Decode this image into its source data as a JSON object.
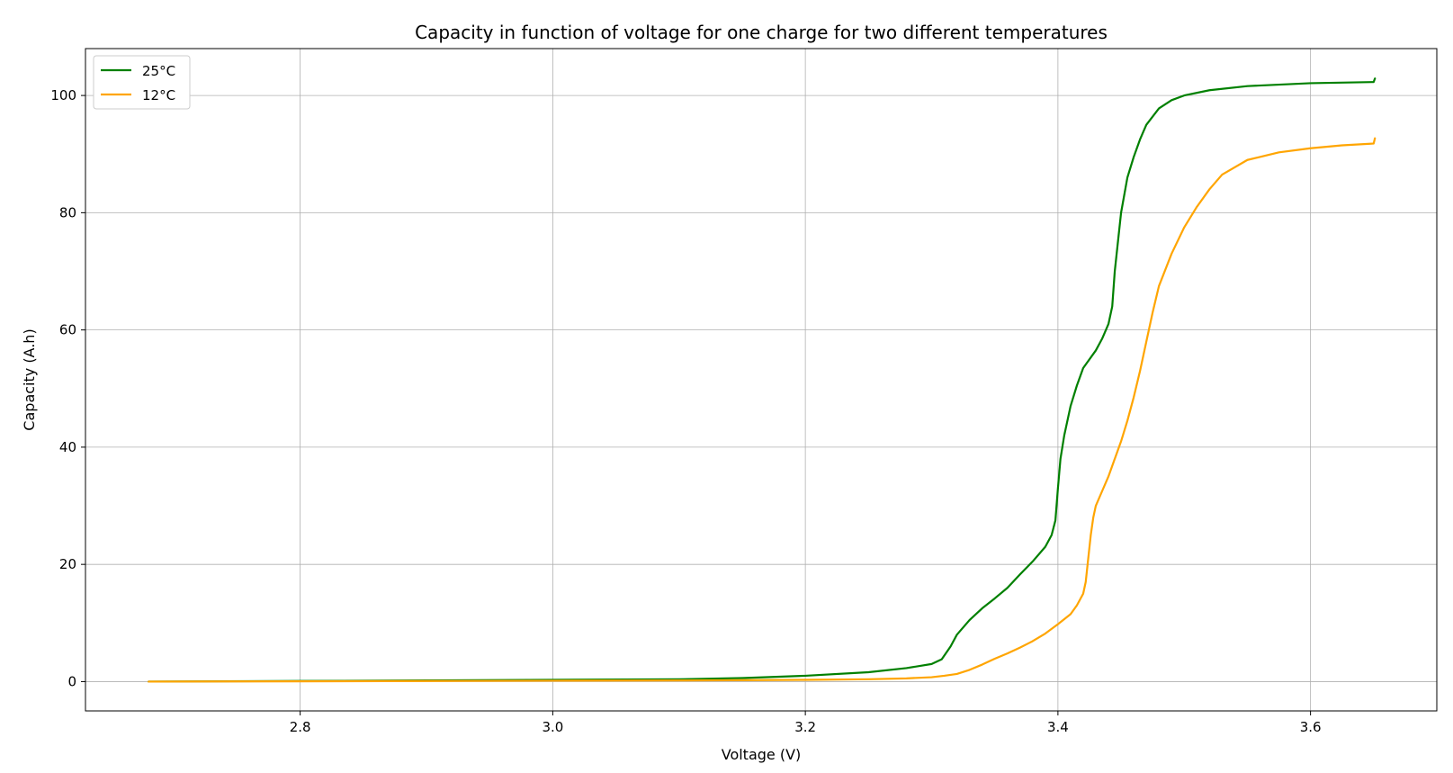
{
  "chart_data": {
    "type": "line",
    "title": "Capacity in function of voltage for one charge for two different temperatures",
    "xlabel": "Voltage (V)",
    "ylabel": "Capacity (A.h)",
    "xlim": [
      2.63,
      3.7
    ],
    "ylim": [
      -5,
      108
    ],
    "x_ticks": [
      2.8,
      3.0,
      3.2,
      3.4,
      3.6
    ],
    "x_tick_labels": [
      "2.8",
      "3.0",
      "3.2",
      "3.4",
      "3.6"
    ],
    "y_ticks": [
      0,
      20,
      40,
      60,
      80,
      100
    ],
    "y_tick_labels": [
      "0",
      "20",
      "40",
      "60",
      "80",
      "100"
    ],
    "grid": true,
    "legend_position": "top-left",
    "series": [
      {
        "name": "25°C",
        "color": "#008000",
        "points": [
          [
            2.68,
            0.0
          ],
          [
            2.8,
            0.1
          ],
          [
            2.9,
            0.2
          ],
          [
            3.0,
            0.3
          ],
          [
            3.1,
            0.4
          ],
          [
            3.15,
            0.6
          ],
          [
            3.2,
            1.0
          ],
          [
            3.25,
            1.6
          ],
          [
            3.28,
            2.3
          ],
          [
            3.3,
            3.0
          ],
          [
            3.308,
            3.8
          ],
          [
            3.315,
            6.0
          ],
          [
            3.32,
            8.0
          ],
          [
            3.33,
            10.5
          ],
          [
            3.34,
            12.5
          ],
          [
            3.35,
            14.2
          ],
          [
            3.36,
            16.0
          ],
          [
            3.37,
            18.3
          ],
          [
            3.38,
            20.5
          ],
          [
            3.39,
            23.0
          ],
          [
            3.395,
            25.0
          ],
          [
            3.398,
            27.5
          ],
          [
            3.4,
            33.0
          ],
          [
            3.402,
            38.0
          ],
          [
            3.405,
            42.0
          ],
          [
            3.41,
            47.0
          ],
          [
            3.415,
            50.5
          ],
          [
            3.42,
            53.5
          ],
          [
            3.43,
            56.5
          ],
          [
            3.435,
            58.5
          ],
          [
            3.44,
            61.0
          ],
          [
            3.443,
            64.0
          ],
          [
            3.445,
            70.0
          ],
          [
            3.448,
            76.0
          ],
          [
            3.45,
            80.0
          ],
          [
            3.455,
            86.0
          ],
          [
            3.46,
            89.5
          ],
          [
            3.465,
            92.5
          ],
          [
            3.47,
            95.0
          ],
          [
            3.48,
            97.8
          ],
          [
            3.49,
            99.2
          ],
          [
            3.5,
            100.0
          ],
          [
            3.52,
            100.9
          ],
          [
            3.55,
            101.6
          ],
          [
            3.6,
            102.1
          ],
          [
            3.65,
            102.3
          ],
          [
            3.651,
            102.9
          ]
        ]
      },
      {
        "name": "12°C",
        "color": "#ffa500",
        "points": [
          [
            2.68,
            0.0
          ],
          [
            2.8,
            0.05
          ],
          [
            2.9,
            0.1
          ],
          [
            3.0,
            0.15
          ],
          [
            3.1,
            0.2
          ],
          [
            3.2,
            0.3
          ],
          [
            3.25,
            0.4
          ],
          [
            3.28,
            0.55
          ],
          [
            3.3,
            0.75
          ],
          [
            3.31,
            1.0
          ],
          [
            3.32,
            1.3
          ],
          [
            3.33,
            2.0
          ],
          [
            3.34,
            2.9
          ],
          [
            3.35,
            3.9
          ],
          [
            3.36,
            4.8
          ],
          [
            3.37,
            5.8
          ],
          [
            3.38,
            6.9
          ],
          [
            3.39,
            8.2
          ],
          [
            3.4,
            9.8
          ],
          [
            3.41,
            11.5
          ],
          [
            3.415,
            13.0
          ],
          [
            3.42,
            15.0
          ],
          [
            3.422,
            17.0
          ],
          [
            3.424,
            21.0
          ],
          [
            3.426,
            25.0
          ],
          [
            3.428,
            28.0
          ],
          [
            3.43,
            30.0
          ],
          [
            3.435,
            32.5
          ],
          [
            3.44,
            35.0
          ],
          [
            3.445,
            38.0
          ],
          [
            3.45,
            41.0
          ],
          [
            3.455,
            44.5
          ],
          [
            3.46,
            48.5
          ],
          [
            3.465,
            53.0
          ],
          [
            3.47,
            58.0
          ],
          [
            3.475,
            63.0
          ],
          [
            3.48,
            67.5
          ],
          [
            3.49,
            73.0
          ],
          [
            3.5,
            77.5
          ],
          [
            3.51,
            81.0
          ],
          [
            3.52,
            84.0
          ],
          [
            3.53,
            86.5
          ],
          [
            3.55,
            89.0
          ],
          [
            3.575,
            90.3
          ],
          [
            3.6,
            91.0
          ],
          [
            3.625,
            91.5
          ],
          [
            3.65,
            91.8
          ],
          [
            3.651,
            92.7
          ]
        ]
      }
    ]
  }
}
